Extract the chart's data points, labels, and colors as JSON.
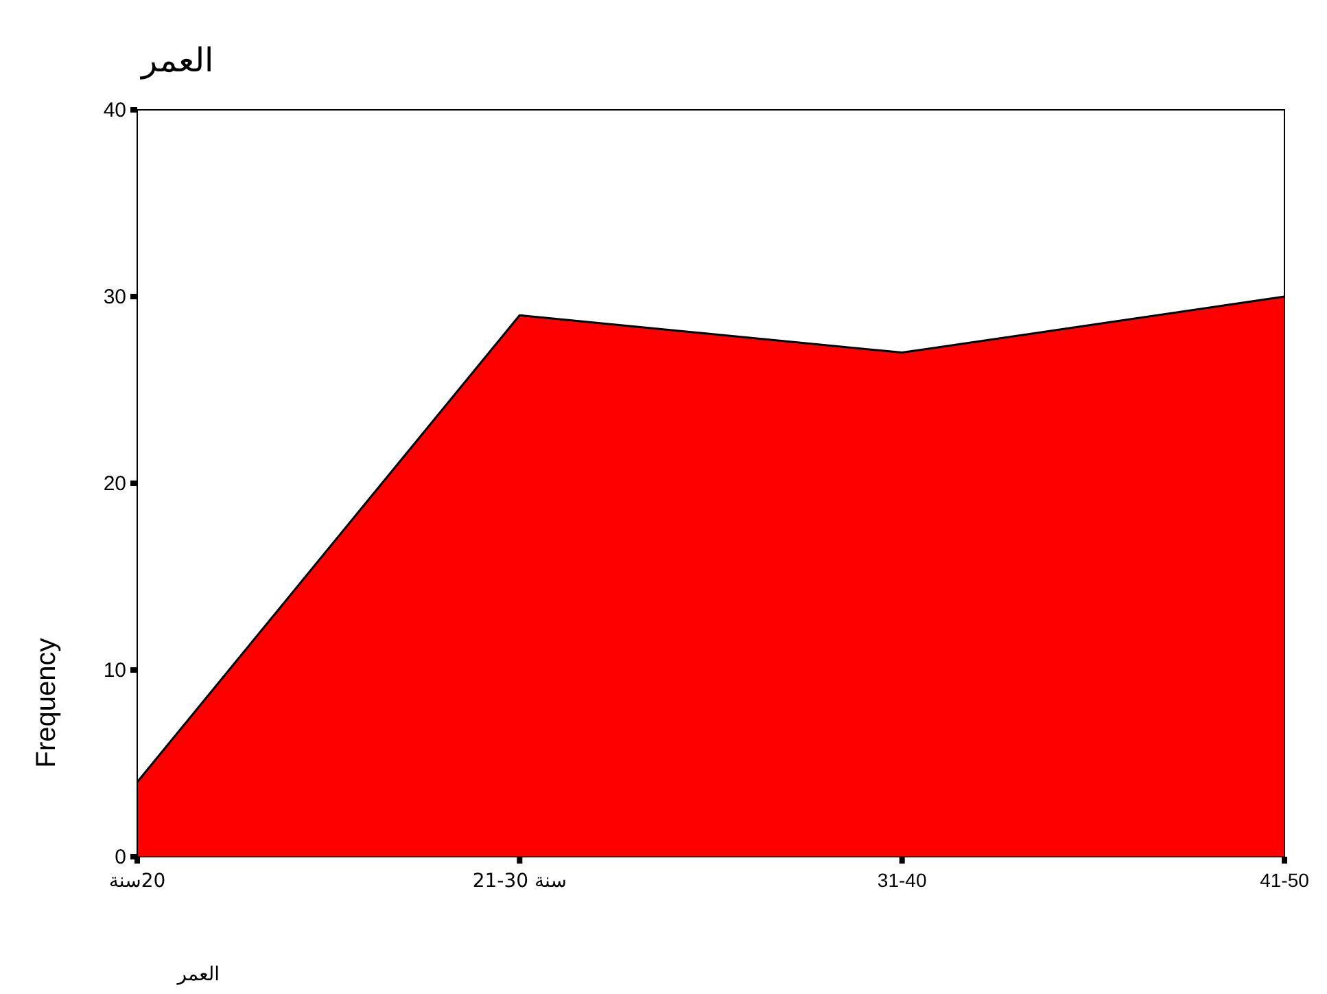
{
  "chart_data": {
    "type": "area",
    "title": "العمر",
    "xlabel": "العمر",
    "ylabel": "Frequency",
    "categories": [
      "20سنة",
      "21-30 سنة",
      "31-40",
      "41-50"
    ],
    "values": [
      4,
      29,
      27,
      30
    ],
    "color": "#ff0000",
    "ylim": [
      0,
      40
    ],
    "yticks": [
      0,
      10,
      20,
      30,
      40
    ]
  }
}
